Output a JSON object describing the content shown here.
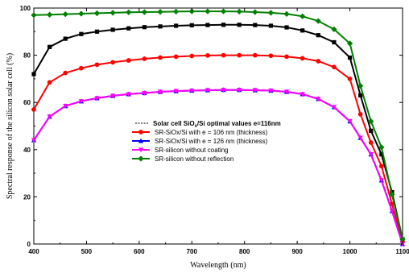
{
  "chart_data": {
    "type": "line",
    "xlabel": "Wavelength (nm)",
    "ylabel": "Spectral response of the silicon solar cell (%)",
    "xlim": [
      400,
      1100
    ],
    "ylim": [
      0,
      100
    ],
    "x_ticks": [
      400,
      500,
      600,
      700,
      800,
      900,
      1000,
      1100
    ],
    "y_ticks": [
      0,
      20,
      40,
      60,
      80,
      100
    ],
    "legend_title_prefix": "Solar cell SiO",
    "legend_title_sub": "x",
    "legend_title_suffix": "/Si optimal values e=116nm",
    "legend_placement": "center",
    "series": [
      {
        "name": "",
        "color": "#000000",
        "marker": "square",
        "x": [
          400,
          430,
          460,
          490,
          520,
          550,
          580,
          610,
          640,
          670,
          700,
          730,
          760,
          790,
          820,
          850,
          880,
          910,
          940,
          970,
          1000,
          1020,
          1040,
          1060,
          1080,
          1100
        ],
        "y": [
          72,
          83.5,
          87,
          89,
          90,
          90.8,
          91.4,
          91.9,
          92.2,
          92.5,
          92.7,
          92.8,
          92.9,
          92.9,
          92.8,
          92.5,
          91.8,
          90.5,
          88.5,
          85.5,
          79,
          63,
          48,
          38,
          22,
          2
        ]
      },
      {
        "name": "SR-SiOx/Si with e = 106 nm (thickness)",
        "color": "#ff0000",
        "marker": "circle",
        "x": [
          400,
          430,
          460,
          490,
          520,
          550,
          580,
          610,
          640,
          670,
          700,
          730,
          760,
          790,
          820,
          850,
          880,
          910,
          940,
          970,
          1000,
          1020,
          1040,
          1060,
          1080,
          1100
        ],
        "y": [
          57,
          68.5,
          72.5,
          74.5,
          76,
          77,
          77.8,
          78.5,
          79,
          79.4,
          79.7,
          79.9,
          80,
          80,
          80,
          79.8,
          79.4,
          78.7,
          77.5,
          75,
          70,
          55,
          43,
          33,
          17,
          1
        ]
      },
      {
        "name": "SR-SiOx/Si with e = 126 nm (thickness)",
        "color": "#0000ff",
        "marker": "triangle-up",
        "x": [
          400,
          430,
          460,
          490,
          520,
          550,
          580,
          610,
          640,
          670,
          700,
          730,
          760,
          790,
          820,
          850,
          880,
          910,
          940,
          970,
          1000,
          1020,
          1040,
          1060,
          1080,
          1100
        ],
        "y": [
          44,
          54,
          58.5,
          60.5,
          61.8,
          62.8,
          63.5,
          64,
          64.5,
          64.8,
          65,
          65.2,
          65.3,
          65.3,
          65.2,
          65,
          64.5,
          63.5,
          61.5,
          58,
          52,
          45,
          38,
          27,
          14,
          0
        ]
      },
      {
        "name": "SR-silicon without coating",
        "color": "#ff00ff",
        "marker": "triangle-down",
        "x": [
          400,
          430,
          460,
          490,
          520,
          550,
          580,
          610,
          640,
          670,
          700,
          730,
          760,
          790,
          820,
          850,
          880,
          910,
          940,
          970,
          1000,
          1020,
          1040,
          1060,
          1080,
          1100
        ],
        "y": [
          44,
          54,
          58.5,
          60.5,
          61.8,
          62.8,
          63.5,
          64,
          64.5,
          64.8,
          65,
          65.2,
          65.3,
          65.3,
          65.2,
          65,
          64.5,
          63.5,
          61.5,
          58,
          52,
          45,
          38,
          27,
          14,
          0
        ]
      },
      {
        "name": "SR-silicon without reflection",
        "color": "#008000",
        "marker": "diamond",
        "x": [
          400,
          430,
          460,
          490,
          520,
          550,
          580,
          610,
          640,
          670,
          700,
          730,
          760,
          790,
          820,
          850,
          880,
          910,
          940,
          970,
          1000,
          1020,
          1040,
          1060,
          1080,
          1100
        ],
        "y": [
          97,
          97.2,
          97.4,
          97.6,
          97.8,
          98,
          98.2,
          98.3,
          98.4,
          98.5,
          98.6,
          98.6,
          98.6,
          98.5,
          98.3,
          98,
          97.5,
          96.5,
          94.5,
          91,
          85,
          67,
          52,
          41,
          21,
          2
        ]
      }
    ]
  }
}
